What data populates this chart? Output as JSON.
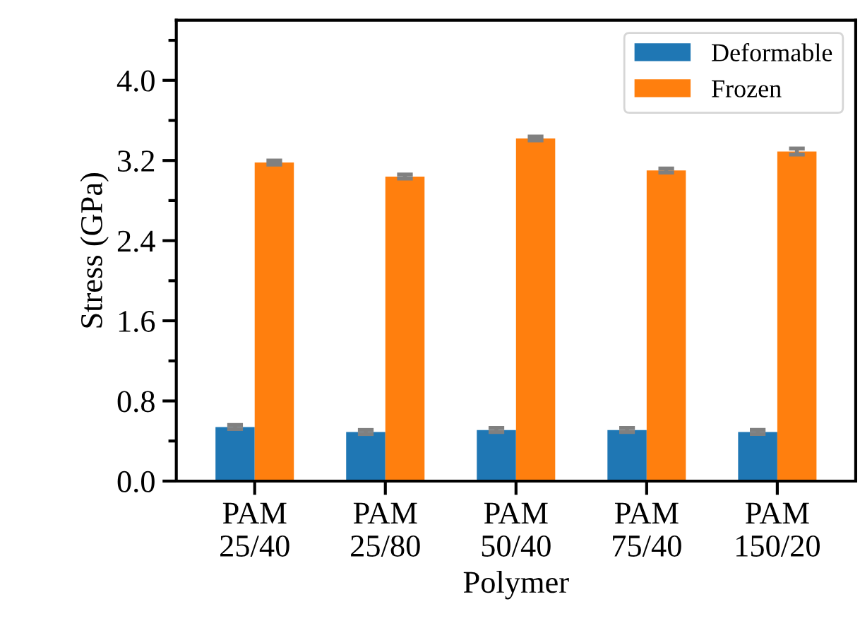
{
  "chart_data": {
    "type": "bar",
    "xlabel": "Polymer",
    "ylabel": "Stress (GPa)",
    "categories": [
      "PAM\n25/40",
      "PAM\n25/80",
      "PAM\n50/40",
      "PAM\n75/40",
      "PAM\n150/20"
    ],
    "series": [
      {
        "name": "Deformable",
        "color": "#1f77b4",
        "values": [
          0.54,
          0.49,
          0.51,
          0.51,
          0.49
        ],
        "errors": [
          0.02,
          0.02,
          0.02,
          0.02,
          0.02
        ]
      },
      {
        "name": "Frozen",
        "color": "#ff7f0e",
        "values": [
          3.18,
          3.04,
          3.42,
          3.1,
          3.29
        ],
        "errors": [
          0.02,
          0.02,
          0.02,
          0.02,
          0.03
        ]
      }
    ],
    "ylim": [
      0,
      4.6
    ],
    "yticks": [
      {
        "value": 0,
        "label": "0.0"
      },
      {
        "value": 0.4,
        "label": null
      },
      0.8,
      {
        "value": 1.2,
        "label": null
      },
      1.6,
      {
        "value": 2.0,
        "label": null
      },
      2.4,
      {
        "value": 2.8,
        "label": null
      },
      3.2,
      {
        "value": 3.6,
        "label": null
      },
      {
        "value": 4,
        "label": "4.0"
      },
      {
        "value": 4.4,
        "label": null
      }
    ],
    "grid": false,
    "legend": "top right"
  }
}
